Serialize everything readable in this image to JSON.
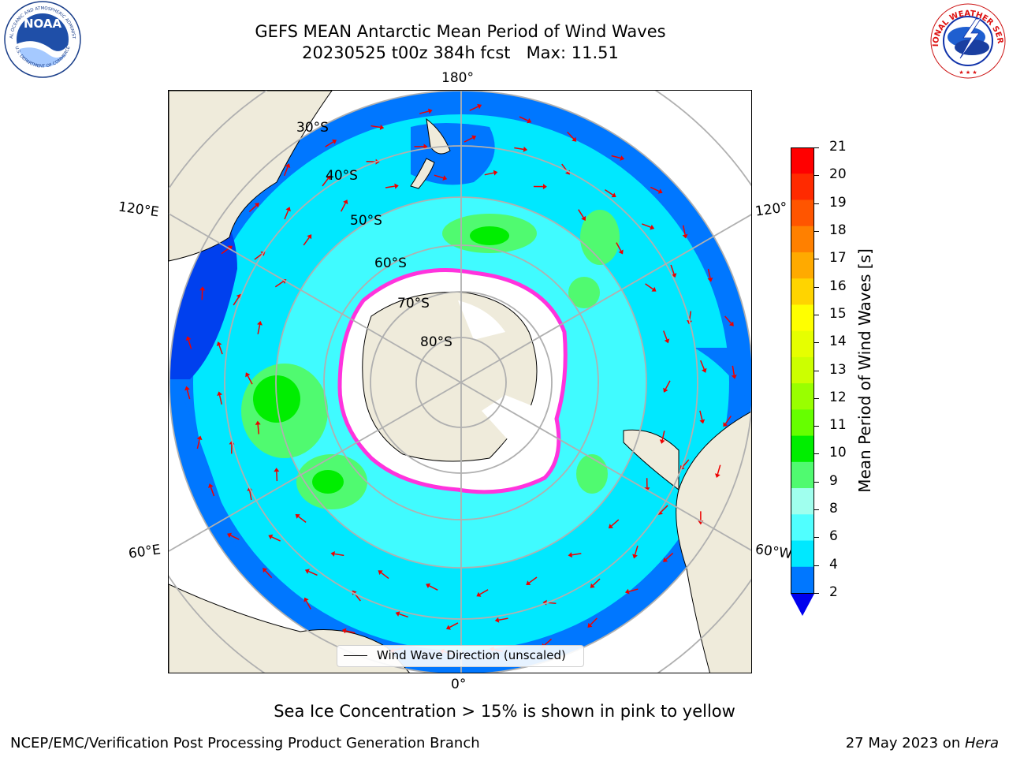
{
  "header": {
    "title_line1": "GEFS MEAN Antarctic Mean Period of Wind Waves",
    "title_line2": "20230525 t00z 384h fcst   Max: 11.51"
  },
  "logos": {
    "left": "NOAA",
    "left_ring_top": "NATIONAL OCEANIC AND ATMOSPHERIC ADMINISTRATION",
    "left_ring_bottom": "U.S. DEPARTMENT OF COMMERCE",
    "right_ring": "NATIONAL WEATHER SERVICE"
  },
  "map": {
    "longitude_labels": {
      "top": "180°",
      "bottom": "0°",
      "left_upper": "120°E",
      "left_lower": "60°E",
      "right_upper": "120°",
      "right_lower": "60°W"
    },
    "latitude_labels": [
      "30°S",
      "40°S",
      "50°S",
      "60°S",
      "70°S",
      "80°S"
    ],
    "legend_label": "Wind Wave Direction (unscaled)",
    "colors": {
      "land": "#efebdb",
      "ice": "#ffffff",
      "ice_edge": "#ff33dd",
      "vector": "#ee0000"
    }
  },
  "colorbar": {
    "label": "Mean Period of Wind Waves [s]",
    "ticks": [
      "21",
      "20",
      "19",
      "18",
      "17",
      "16",
      "15",
      "14",
      "13",
      "12",
      "11",
      "10",
      "9",
      "8",
      "6",
      "4",
      "2"
    ],
    "colors": [
      "#ff0000",
      "#ff2a00",
      "#ff5500",
      "#ff8000",
      "#ffaa00",
      "#ffd400",
      "#ffff00",
      "#e6ff00",
      "#ccff00",
      "#99ff00",
      "#66ff00",
      "#00ee00",
      "#50fa70",
      "#a0ffee",
      "#50ffff",
      "#00e8ff",
      "#0077ff"
    ],
    "under_color": "#0000ee"
  },
  "footer": {
    "note": "Sea Ice Concentration > 15% is shown in pink to yellow",
    "left": "NCEP/EMC/Verification Post Processing Product Generation Branch",
    "right_date": "27 May 2023 on ",
    "right_machine": "Hera"
  }
}
